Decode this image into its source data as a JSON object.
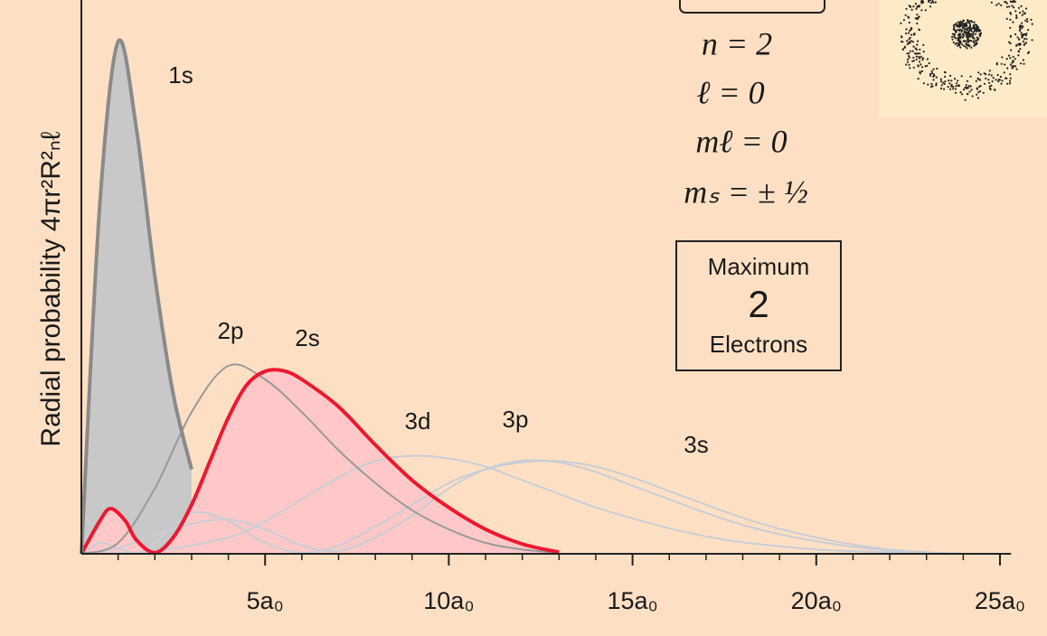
{
  "chart_data": {
    "type": "line",
    "ylabel": "Radial probability 4πr²R²ₙℓ",
    "xlim": [
      0,
      25.3
    ],
    "ylim": [
      0,
      1
    ],
    "xticks": [
      {
        "value": 5,
        "label": "5a₀"
      },
      {
        "value": 10,
        "label": "10a₀"
      },
      {
        "value": 15,
        "label": "15a₀"
      },
      {
        "value": 20,
        "label": "20a₀"
      },
      {
        "value": 25,
        "label": "25a₀"
      }
    ],
    "xminorticks": [
      1,
      2,
      3,
      4,
      6,
      7,
      8,
      9,
      11,
      12,
      13,
      14,
      16,
      17,
      18,
      19,
      21,
      22,
      23,
      24
    ],
    "series": [
      {
        "name": "1s",
        "color": "#8a8a8a",
        "fill": "#c8c8c8",
        "x": [
          0,
          0.5,
          1,
          1.5,
          2,
          2.5,
          3
        ],
        "values": [
          0,
          0.639,
          0.94,
          0.779,
          0.509,
          0.293,
          0.155
        ]
      },
      {
        "name": "2s",
        "color": "#ec1830",
        "fill": "#ffc8c8",
        "x": [
          0,
          0.5,
          0.8,
          1.2,
          1.5,
          2,
          2.5,
          3,
          3.5,
          4,
          4.5,
          5,
          5.5,
          6,
          7,
          8,
          9,
          10,
          11,
          12,
          13
        ],
        "values": [
          0,
          0.06,
          0.083,
          0.06,
          0.025,
          0.002,
          0.03,
          0.09,
          0.17,
          0.25,
          0.31,
          0.335,
          0.336,
          0.32,
          0.27,
          0.2,
          0.135,
          0.085,
          0.045,
          0.018,
          0.003
        ]
      },
      {
        "name": "2p",
        "color": "#999999",
        "x": [
          0,
          1,
          2,
          3,
          4,
          5,
          6,
          7,
          8,
          9,
          10,
          11,
          12,
          13
        ],
        "values": [
          0,
          0.02,
          0.12,
          0.26,
          0.345,
          0.32,
          0.26,
          0.19,
          0.13,
          0.08,
          0.045,
          0.02,
          0.008,
          0.002
        ]
      },
      {
        "name": "3d",
        "color": "#c9cdd6",
        "x": [
          0,
          2,
          4,
          5,
          6,
          7,
          8,
          9,
          10,
          11,
          12,
          13,
          14,
          15,
          16,
          17,
          18,
          20,
          22,
          24
        ],
        "values": [
          0,
          0.005,
          0.03,
          0.06,
          0.1,
          0.14,
          0.17,
          0.18,
          0.175,
          0.16,
          0.135,
          0.11,
          0.085,
          0.065,
          0.047,
          0.032,
          0.021,
          0.008,
          0.003,
          0
        ]
      },
      {
        "name": "3p",
        "color": "#c9cdd6",
        "x": [
          0,
          1,
          2,
          3,
          4,
          5,
          6,
          7,
          8,
          9,
          10,
          11,
          12,
          13,
          14,
          15,
          16,
          17,
          18,
          19,
          20,
          21,
          22,
          23,
          24
        ],
        "values": [
          0,
          0.01,
          0.035,
          0.055,
          0.063,
          0.045,
          0.015,
          0.005,
          0.03,
          0.07,
          0.12,
          0.155,
          0.171,
          0.168,
          0.15,
          0.125,
          0.1,
          0.075,
          0.053,
          0.036,
          0.023,
          0.013,
          0.006,
          0.002,
          0
        ]
      },
      {
        "name": "3s",
        "color": "#c9cdd6",
        "x": [
          0,
          0.5,
          1,
          1.5,
          2,
          3,
          4,
          5,
          6,
          7,
          8,
          9,
          10,
          11,
          12,
          13,
          14,
          15,
          16,
          17,
          18,
          19,
          20,
          21,
          22,
          23,
          24
        ],
        "values": [
          0,
          0.02,
          0.01,
          0.001,
          0.02,
          0.075,
          0.06,
          0.02,
          0.002,
          0.015,
          0.05,
          0.09,
          0.13,
          0.155,
          0.168,
          0.17,
          0.16,
          0.14,
          0.115,
          0.09,
          0.066,
          0.046,
          0.03,
          0.017,
          0.008,
          0.003,
          0
        ]
      }
    ],
    "quantum_numbers": [
      "n = 2",
      "ℓ = 0",
      "mℓ = 0",
      "mₛ = ± ½"
    ],
    "box": [
      "Maximum",
      "2",
      "Electrons"
    ]
  }
}
